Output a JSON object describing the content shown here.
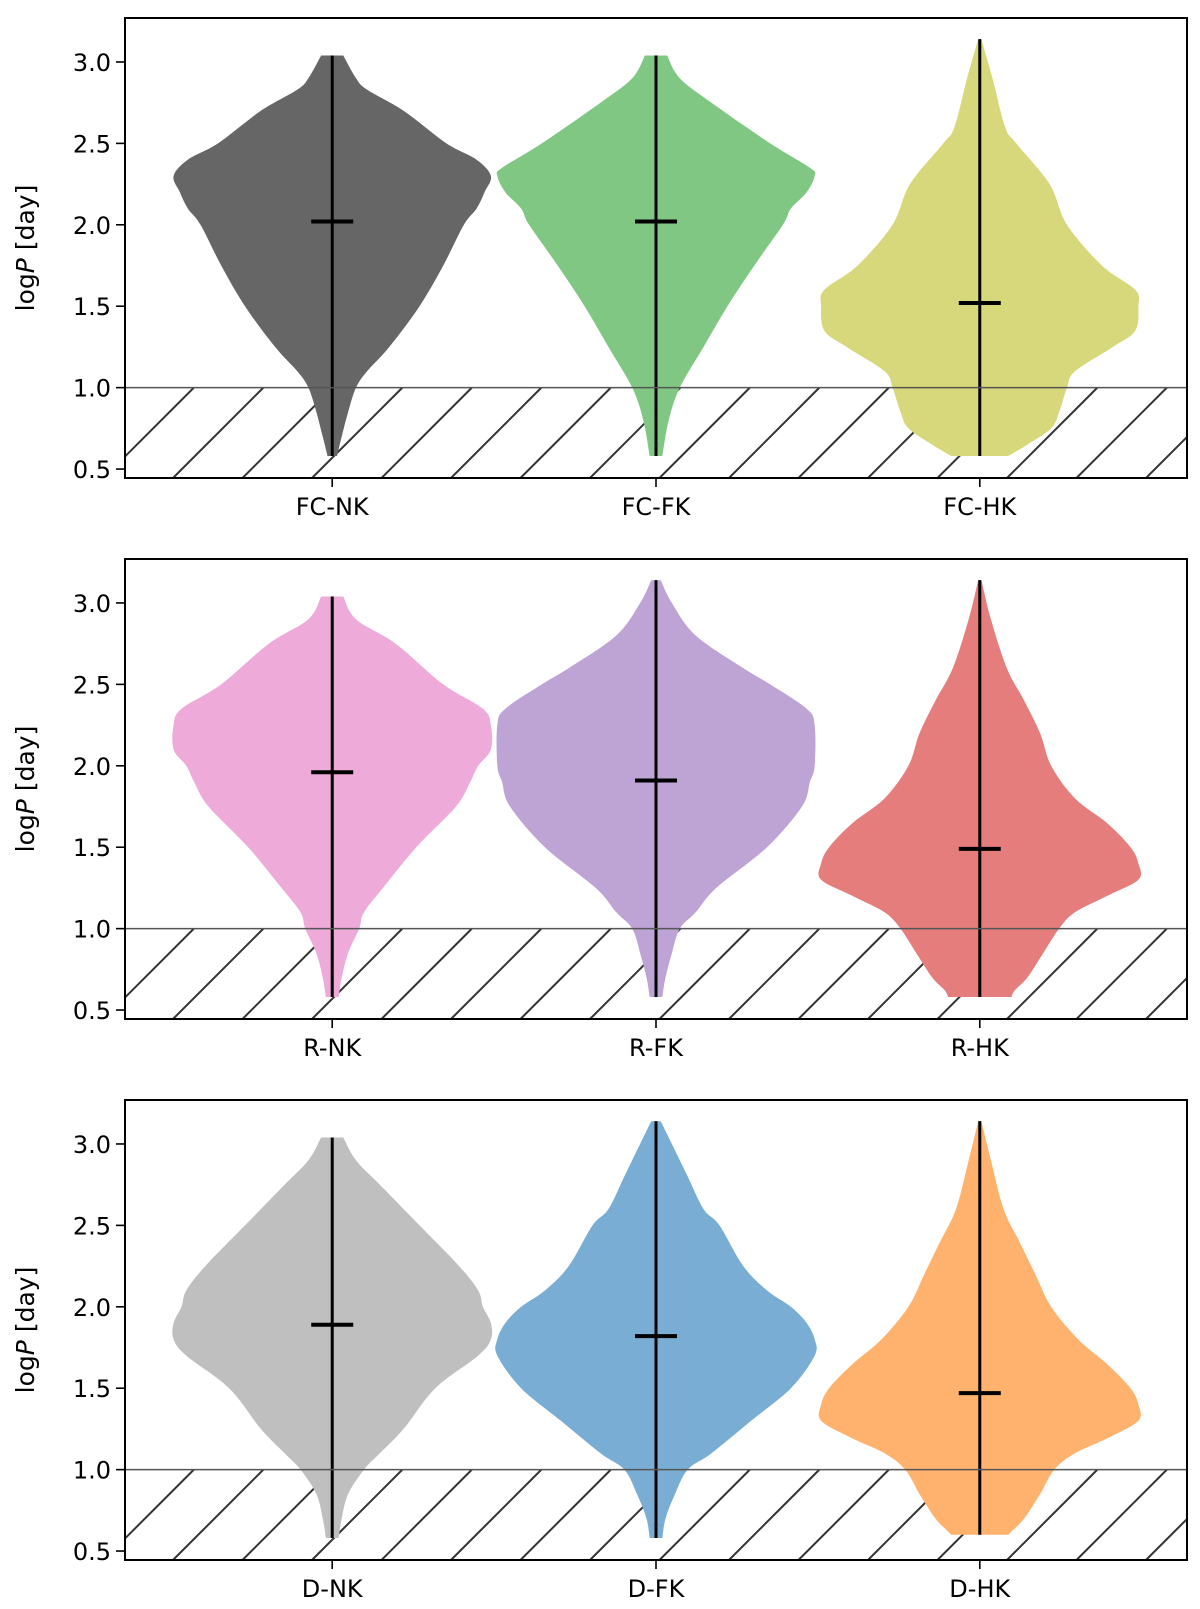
{
  "chart_data": [
    {
      "type": "violin",
      "ylabel_prefix": "log",
      "ylabel_var": "P",
      "ylabel_unit": " [day]",
      "ylim": [
        0.445,
        3.27
      ],
      "yticks": [
        "0.5",
        "1.0",
        "1.5",
        "2.0",
        "2.5",
        "3.0"
      ],
      "threshold": 1.0,
      "categories": [
        "FC-NK",
        "FC-FK",
        "FC-HK"
      ],
      "colors": [
        "#666666",
        "#81c784",
        "#d7d87b"
      ],
      "series": [
        {
          "name": "FC-NK",
          "min": 0.58,
          "max": 3.04,
          "median": 2.02,
          "density": [
            [
              0.58,
              0.03
            ],
            [
              0.7,
              0.06
            ],
            [
              0.85,
              0.1
            ],
            [
              1.0,
              0.15
            ],
            [
              1.1,
              0.22
            ],
            [
              1.25,
              0.36
            ],
            [
              1.5,
              0.55
            ],
            [
              1.75,
              0.7
            ],
            [
              2.0,
              0.83
            ],
            [
              2.1,
              0.91
            ],
            [
              2.2,
              0.96
            ],
            [
              2.3,
              1.0
            ],
            [
              2.4,
              0.91
            ],
            [
              2.5,
              0.72
            ],
            [
              2.7,
              0.45
            ],
            [
              2.83,
              0.22
            ],
            [
              2.9,
              0.15
            ],
            [
              3.04,
              0.07
            ]
          ]
        },
        {
          "name": "FC-FK",
          "min": 0.58,
          "max": 3.04,
          "median": 2.02,
          "density": [
            [
              0.58,
              0.04
            ],
            [
              0.8,
              0.08
            ],
            [
              1.0,
              0.15
            ],
            [
              1.25,
              0.3
            ],
            [
              1.5,
              0.45
            ],
            [
              1.75,
              0.62
            ],
            [
              2.0,
              0.8
            ],
            [
              2.1,
              0.85
            ],
            [
              2.2,
              0.95
            ],
            [
              2.3,
              1.0
            ],
            [
              2.35,
              0.97
            ],
            [
              2.5,
              0.72
            ],
            [
              2.75,
              0.35
            ],
            [
              2.9,
              0.15
            ],
            [
              3.04,
              0.07
            ]
          ]
        },
        {
          "name": "FC-HK",
          "min": 0.58,
          "max": 3.14,
          "median": 1.52,
          "density": [
            [
              0.58,
              0.18
            ],
            [
              0.65,
              0.3
            ],
            [
              0.75,
              0.45
            ],
            [
              0.85,
              0.5
            ],
            [
              1.0,
              0.55
            ],
            [
              1.1,
              0.6
            ],
            [
              1.25,
              0.84
            ],
            [
              1.35,
              0.98
            ],
            [
              1.5,
              1.0
            ],
            [
              1.6,
              0.98
            ],
            [
              1.75,
              0.77
            ],
            [
              2.0,
              0.55
            ],
            [
              2.25,
              0.44
            ],
            [
              2.5,
              0.23
            ],
            [
              2.6,
              0.16
            ],
            [
              2.9,
              0.08
            ],
            [
              3.14,
              0.01
            ]
          ]
        }
      ]
    },
    {
      "type": "violin",
      "ylabel_prefix": "log",
      "ylabel_var": "P",
      "ylabel_unit": " [day]",
      "ylim": [
        0.445,
        3.27
      ],
      "yticks": [
        "0.5",
        "1.0",
        "1.5",
        "2.0",
        "2.5",
        "3.0"
      ],
      "threshold": 1.0,
      "categories": [
        "R-NK",
        "R-FK",
        "R-HK"
      ],
      "colors": [
        "#eeabd9",
        "#bea3d5",
        "#e57d7d"
      ],
      "series": [
        {
          "name": "R-NK",
          "min": 0.58,
          "max": 3.04,
          "median": 1.96,
          "density": [
            [
              0.58,
              0.04
            ],
            [
              0.7,
              0.06
            ],
            [
              0.85,
              0.1
            ],
            [
              1.0,
              0.17
            ],
            [
              1.1,
              0.2
            ],
            [
              1.25,
              0.32
            ],
            [
              1.5,
              0.53
            ],
            [
              1.75,
              0.78
            ],
            [
              1.9,
              0.87
            ],
            [
              2.0,
              0.92
            ],
            [
              2.1,
              1.0
            ],
            [
              2.25,
              1.0
            ],
            [
              2.35,
              0.95
            ],
            [
              2.5,
              0.7
            ],
            [
              2.75,
              0.4
            ],
            [
              2.9,
              0.15
            ],
            [
              3.04,
              0.07
            ]
          ]
        },
        {
          "name": "R-FK",
          "min": 0.58,
          "max": 3.14,
          "median": 1.91,
          "density": [
            [
              0.58,
              0.04
            ],
            [
              0.7,
              0.06
            ],
            [
              0.85,
              0.1
            ],
            [
              1.0,
              0.15
            ],
            [
              1.1,
              0.25
            ],
            [
              1.25,
              0.38
            ],
            [
              1.5,
              0.7
            ],
            [
              1.75,
              0.92
            ],
            [
              1.9,
              0.97
            ],
            [
              2.0,
              1.0
            ],
            [
              2.25,
              1.0
            ],
            [
              2.35,
              0.95
            ],
            [
              2.5,
              0.72
            ],
            [
              2.6,
              0.55
            ],
            [
              2.8,
              0.25
            ],
            [
              3.0,
              0.1
            ],
            [
              3.14,
              0.03
            ]
          ]
        },
        {
          "name": "R-HK",
          "min": 0.58,
          "max": 3.14,
          "median": 1.49,
          "density": [
            [
              0.58,
              0.2
            ],
            [
              0.62,
              0.22
            ],
            [
              0.7,
              0.3
            ],
            [
              0.85,
              0.4
            ],
            [
              1.0,
              0.5
            ],
            [
              1.1,
              0.6
            ],
            [
              1.2,
              0.8
            ],
            [
              1.3,
              1.0
            ],
            [
              1.4,
              1.0
            ],
            [
              1.5,
              0.95
            ],
            [
              1.65,
              0.8
            ],
            [
              1.8,
              0.6
            ],
            [
              2.0,
              0.45
            ],
            [
              2.2,
              0.38
            ],
            [
              2.4,
              0.28
            ],
            [
              2.6,
              0.17
            ],
            [
              2.9,
              0.07
            ],
            [
              3.14,
              0.01
            ]
          ]
        }
      ]
    },
    {
      "type": "violin",
      "ylabel_prefix": "log",
      "ylabel_var": "P",
      "ylabel_unit": " [day]",
      "ylim": [
        0.445,
        3.27
      ],
      "yticks": [
        "0.5",
        "1.0",
        "1.5",
        "2.0",
        "2.5",
        "3.0"
      ],
      "threshold": 1.0,
      "categories": [
        "D-NK",
        "D-FK",
        "D-HK"
      ],
      "colors": [
        "#bfbfbf",
        "#7aadd3",
        "#ffb26d"
      ],
      "series": [
        {
          "name": "D-NK",
          "min": 0.58,
          "max": 3.04,
          "median": 1.89,
          "density": [
            [
              0.58,
              0.04
            ],
            [
              0.7,
              0.06
            ],
            [
              0.85,
              0.1
            ],
            [
              1.0,
              0.2
            ],
            [
              1.1,
              0.3
            ],
            [
              1.25,
              0.45
            ],
            [
              1.5,
              0.65
            ],
            [
              1.7,
              0.92
            ],
            [
              1.8,
              1.0
            ],
            [
              1.9,
              1.0
            ],
            [
              2.0,
              0.95
            ],
            [
              2.1,
              0.92
            ],
            [
              2.25,
              0.8
            ],
            [
              2.5,
              0.55
            ],
            [
              2.75,
              0.3
            ],
            [
              2.9,
              0.15
            ],
            [
              3.04,
              0.07
            ]
          ]
        },
        {
          "name": "D-FK",
          "min": 0.58,
          "max": 3.14,
          "median": 1.82,
          "density": [
            [
              0.58,
              0.04
            ],
            [
              0.7,
              0.06
            ],
            [
              0.85,
              0.12
            ],
            [
              1.0,
              0.2
            ],
            [
              1.1,
              0.35
            ],
            [
              1.3,
              0.6
            ],
            [
              1.5,
              0.85
            ],
            [
              1.7,
              1.0
            ],
            [
              1.8,
              1.0
            ],
            [
              1.9,
              0.95
            ],
            [
              2.0,
              0.85
            ],
            [
              2.1,
              0.7
            ],
            [
              2.25,
              0.55
            ],
            [
              2.5,
              0.4
            ],
            [
              2.6,
              0.3
            ],
            [
              2.8,
              0.2
            ],
            [
              3.0,
              0.1
            ],
            [
              3.14,
              0.03
            ]
          ]
        },
        {
          "name": "D-HK",
          "min": 0.6,
          "max": 3.14,
          "median": 1.47,
          "density": [
            [
              0.6,
              0.18
            ],
            [
              0.62,
              0.2
            ],
            [
              0.7,
              0.28
            ],
            [
              0.85,
              0.38
            ],
            [
              1.0,
              0.47
            ],
            [
              1.1,
              0.6
            ],
            [
              1.2,
              0.82
            ],
            [
              1.3,
              1.0
            ],
            [
              1.4,
              1.0
            ],
            [
              1.5,
              0.95
            ],
            [
              1.65,
              0.8
            ],
            [
              1.8,
              0.62
            ],
            [
              2.0,
              0.45
            ],
            [
              2.2,
              0.35
            ],
            [
              2.4,
              0.25
            ],
            [
              2.6,
              0.15
            ],
            [
              2.9,
              0.07
            ],
            [
              3.14,
              0.01
            ]
          ]
        }
      ]
    }
  ]
}
